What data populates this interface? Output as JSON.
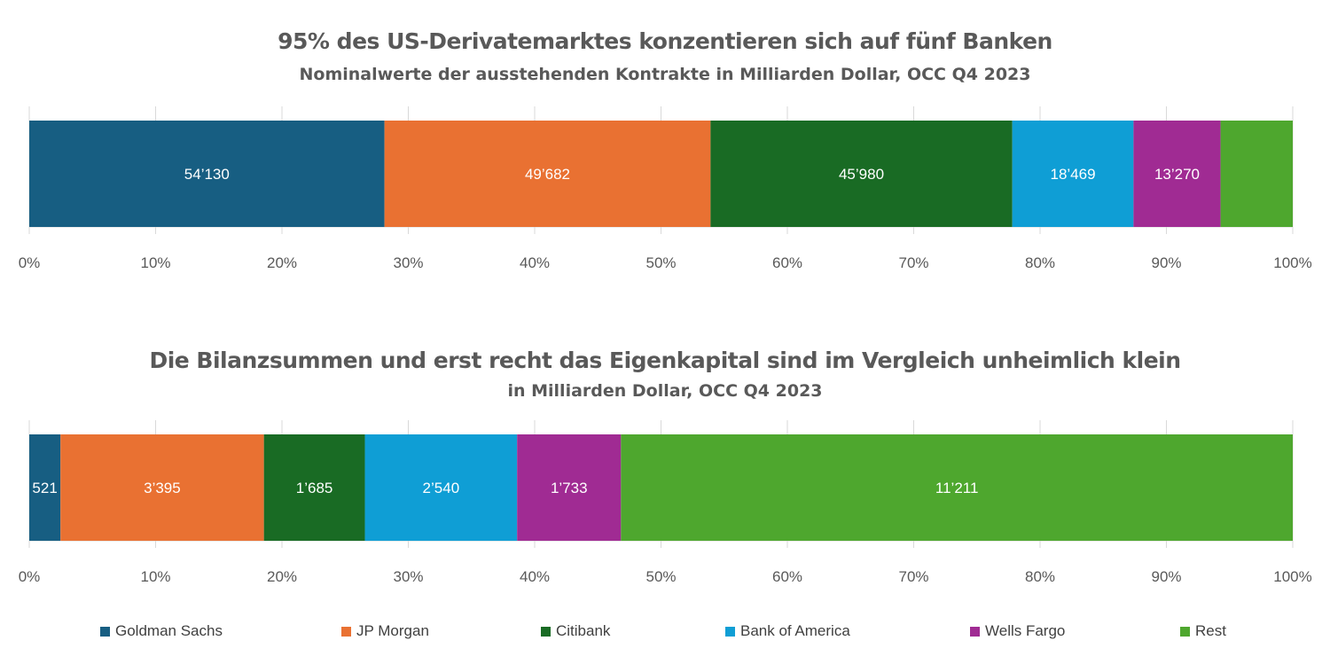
{
  "colors": {
    "Goldman Sachs": "#175E82",
    "JP Morgan": "#E97132",
    "Citibank": "#196B24",
    "Bank of America": "#0F9ED5",
    "Wells Fargo": "#A02B93",
    "Rest": "#4EA72E"
  },
  "legend": [
    "Goldman Sachs",
    "JP Morgan",
    "Citibank",
    "Bank of America",
    "Wells Fargo",
    "Rest"
  ],
  "chart_data": [
    {
      "type": "bar",
      "orientation": "horizontal",
      "stacking": "percent",
      "title": "95% des US-Derivatemarktes konzentieren sich auf fünf Banken",
      "subtitle": "Nominalwerte der ausstehenden Kontrakte in Milliarden Dollar, OCC Q4 2023",
      "xlim": [
        0,
        100
      ],
      "x_ticks": [
        "0%",
        "10%",
        "20%",
        "30%",
        "40%",
        "50%",
        "60%",
        "70%",
        "80%",
        "90%",
        "100%"
      ],
      "grid": true,
      "series": [
        {
          "name": "Goldman Sachs",
          "value": 54130,
          "label": "54’130"
        },
        {
          "name": "JP Morgan",
          "value": 49682,
          "label": "49’682"
        },
        {
          "name": "Citibank",
          "value": 45980,
          "label": "45’980"
        },
        {
          "name": "Bank of America",
          "value": 18469,
          "label": "18’469"
        },
        {
          "name": "Wells Fargo",
          "value": 13270,
          "label": "13’270"
        },
        {
          "name": "Rest",
          "value": 11000,
          "label": ""
        }
      ]
    },
    {
      "type": "bar",
      "orientation": "horizontal",
      "stacking": "percent",
      "title": "Die Bilanzsummen und erst recht das Eigenkapital sind im Vergleich unheimlich klein",
      "subtitle": "in Milliarden Dollar, OCC Q4 2023",
      "xlim": [
        0,
        100
      ],
      "x_ticks": [
        "0%",
        "10%",
        "20%",
        "30%",
        "40%",
        "50%",
        "60%",
        "70%",
        "80%",
        "90%",
        "100%"
      ],
      "grid": true,
      "series": [
        {
          "name": "Goldman Sachs",
          "value": 521,
          "label": "521"
        },
        {
          "name": "JP Morgan",
          "value": 3395,
          "label": "3’395"
        },
        {
          "name": "Citibank",
          "value": 1685,
          "label": "1’685"
        },
        {
          "name": "Bank of America",
          "value": 2540,
          "label": "2’540"
        },
        {
          "name": "Wells Fargo",
          "value": 1733,
          "label": "1’733"
        },
        {
          "name": "Rest",
          "value": 11211,
          "label": "11’211"
        }
      ]
    }
  ]
}
